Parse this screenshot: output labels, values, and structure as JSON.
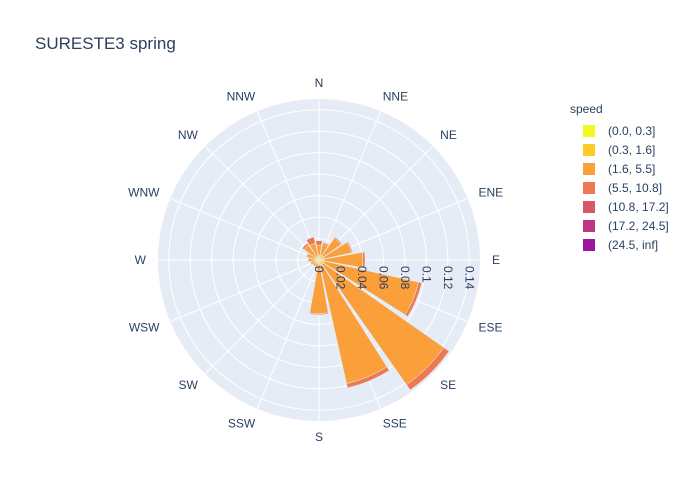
{
  "chart_data": {
    "type": "barpolar",
    "title": "SURESTE3 spring",
    "directions": [
      "N",
      "NNE",
      "NE",
      "ENE",
      "E",
      "ESE",
      "SE",
      "SSE",
      "S",
      "SSW",
      "SW",
      "WSW",
      "W",
      "WNW",
      "NW",
      "NNW"
    ],
    "radial_ticks": [
      "0",
      "0.02",
      "0.04",
      "0.06",
      "0.08",
      "0.1",
      "0.12",
      "0.14"
    ],
    "radial_tick_values": [
      0,
      0.02,
      0.04,
      0.06,
      0.08,
      0.1,
      0.12,
      0.14
    ],
    "radial_range": [
      0,
      0.15
    ],
    "legend_title": "speed",
    "series": [
      {
        "name": "(0.0, 0.3]",
        "color": "#f0f921",
        "values": [
          0.001,
          0.001,
          0.001,
          0.001,
          0.001,
          0.001,
          0.001,
          0.001,
          0.001,
          0.001,
          0.001,
          0.001,
          0.001,
          0.001,
          0.001,
          0.001
        ]
      },
      {
        "name": "(0.3, 1.6]",
        "color": "#fdca26",
        "values": [
          0.003,
          0.004,
          0.004,
          0.004,
          0.004,
          0.004,
          0.004,
          0.004,
          0.003,
          0.003,
          0.003,
          0.003,
          0.003,
          0.003,
          0.003,
          0.003
        ]
      },
      {
        "name": "(1.6, 5.5]",
        "color": "#fb9f3a",
        "values": [
          0.01,
          0.011,
          0.02,
          0.026,
          0.036,
          0.09,
          0.137,
          0.113,
          0.046,
          0.004,
          0.003,
          0.004,
          0.006,
          0.007,
          0.013,
          0.012
        ]
      },
      {
        "name": "(5.5, 10.8]",
        "color": "#ed7953",
        "values": [
          0.004,
          0.001,
          0.001,
          0.001,
          0.002,
          0.003,
          0.006,
          0.004,
          0.001,
          0.0,
          0.0,
          0.0,
          0.0,
          0.001,
          0.002,
          0.006
        ]
      },
      {
        "name": "(10.8, 17.2]",
        "color": "#d8576b",
        "values": [
          0,
          0,
          0,
          0,
          0,
          0,
          0,
          0,
          0,
          0,
          0,
          0,
          0,
          0,
          0,
          0
        ]
      },
      {
        "name": "(17.2, 24.5]",
        "color": "#bd3786",
        "values": [
          0,
          0,
          0,
          0,
          0,
          0,
          0,
          0,
          0,
          0,
          0,
          0,
          0,
          0,
          0,
          0
        ]
      },
      {
        "name": "(24.5, inf]",
        "color": "#9c179e",
        "values": [
          0,
          0,
          0,
          0,
          0,
          0,
          0,
          0,
          0,
          0,
          0,
          0,
          0,
          0,
          0,
          0
        ]
      }
    ]
  }
}
